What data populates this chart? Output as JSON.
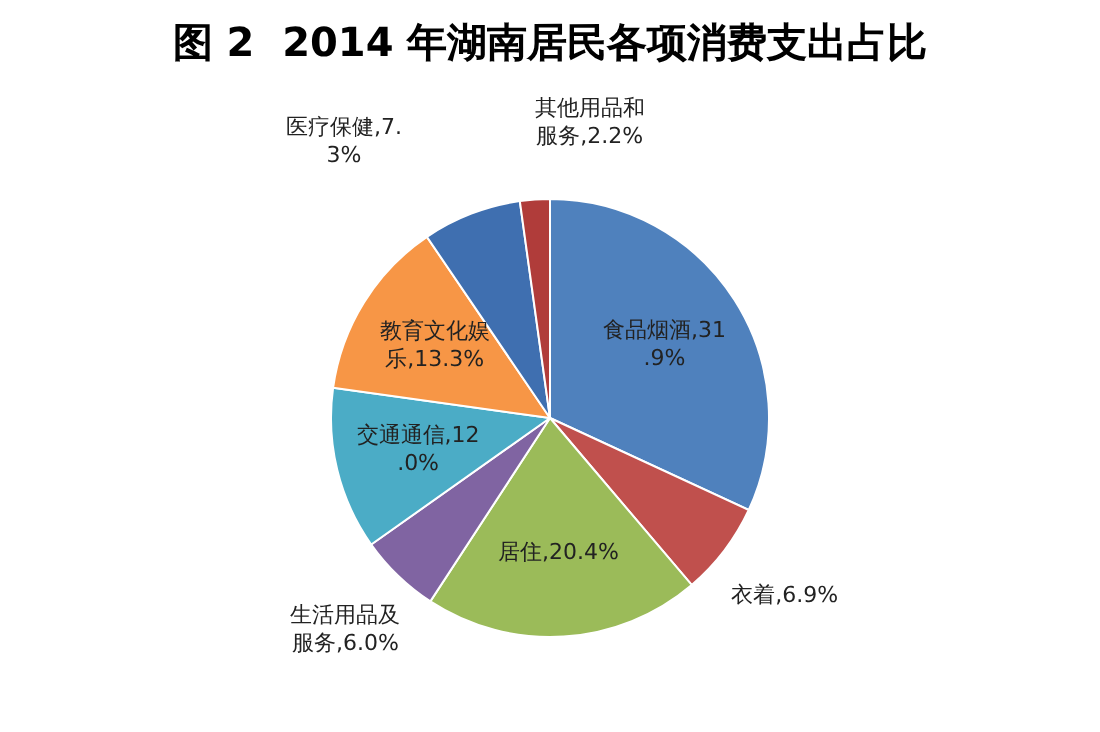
{
  "chart_data": {
    "type": "pie",
    "title": "图 2  2014 年湖南居民各项消费支出占比",
    "categories": [
      "食品烟酒",
      "衣着",
      "居住",
      "生活用品及服务",
      "交通通信",
      "教育文化娱乐",
      "医疗保健",
      "其他用品和服务"
    ],
    "values": [
      31.9,
      6.9,
      20.4,
      6.0,
      12.0,
      13.3,
      7.3,
      2.2
    ],
    "value_labels": [
      "31.9%",
      "6.9%",
      "20.4%",
      "6.0%",
      "12.0%",
      "13.3%",
      "7.3%",
      "2.2%"
    ],
    "colors": [
      "#4f81bd",
      "#c0504d",
      "#9bbb59",
      "#8064a2",
      "#4bacc6",
      "#f79646",
      "#3f6fb0",
      "#b03c3a"
    ],
    "legend": false
  }
}
